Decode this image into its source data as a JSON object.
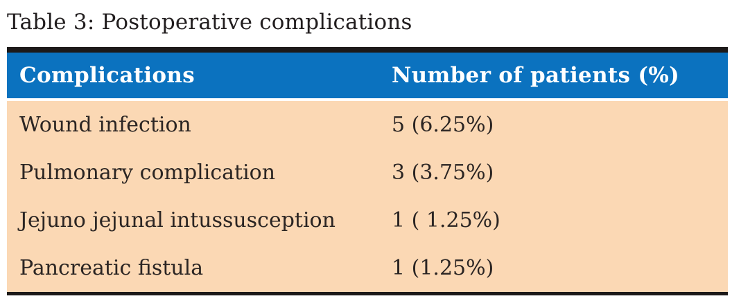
{
  "caption": "Table 3: Postoperative complications",
  "table": {
    "columns": [
      {
        "label": "Complications"
      },
      {
        "label": "Number of patients (%)"
      }
    ],
    "rows": [
      {
        "complication": "Wound infection",
        "patients": "5 (6.25%)"
      },
      {
        "complication": "Pulmonary complication",
        "patients": "3 (3.75%)"
      },
      {
        "complication": "Jejuno jejunal intussusception",
        "patients": "1 ( 1.25%)"
      },
      {
        "complication": "Pancreatic fistula",
        "patients": "1 (1.25%)"
      }
    ]
  },
  "colors": {
    "header_background": "#0b72bf",
    "header_text": "#ffffff",
    "body_background": "#fbd8b4",
    "rule": "#1d1a19",
    "body_text": "#2b2523"
  }
}
